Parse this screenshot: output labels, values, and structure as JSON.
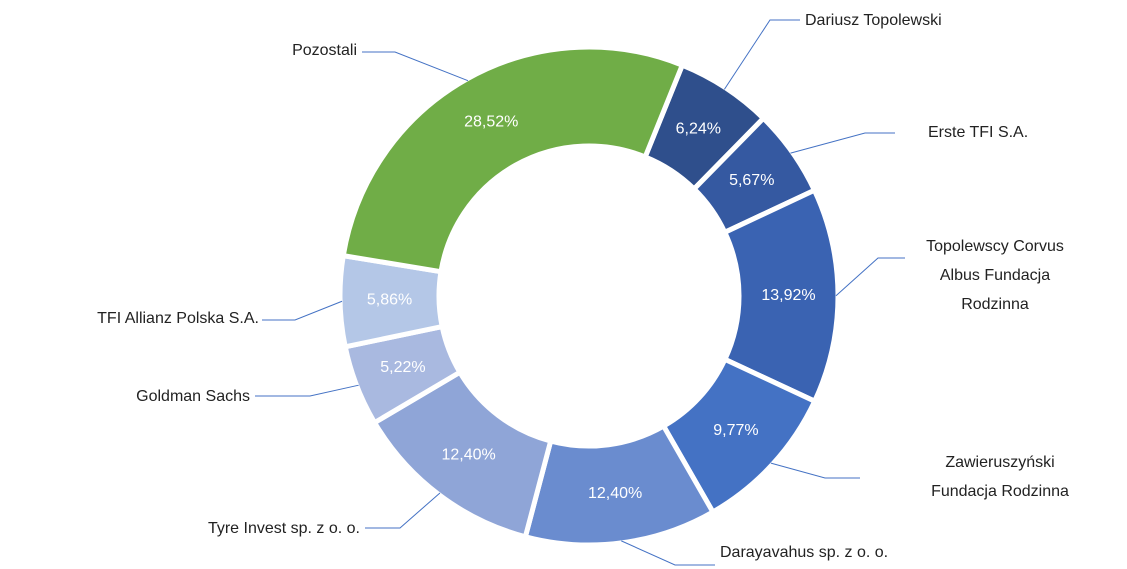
{
  "chart_data": {
    "type": "donut",
    "categories": [
      "Dariusz Topolewski",
      "Erste TFI S.A.",
      "Topolewscy Corvus Albus Fundacja Rodzinna",
      "Zawieruszyński Fundacja Rodzinna",
      "Darayavahus sp. z o. o.",
      "Tyre Invest sp. z o. o.",
      "Goldman Sachs",
      "TFI Allianz Polska S.A.",
      "Pozostali"
    ],
    "values": [
      6.24,
      5.67,
      13.92,
      9.77,
      12.4,
      12.4,
      5.22,
      5.86,
      28.52
    ],
    "value_labels": [
      "6,24%",
      "5,67%",
      "13,92%",
      "9,77%",
      "12,40%",
      "12,40%",
      "5,22%",
      "5,86%",
      "28,52%"
    ],
    "colors": [
      "#2f4f8c",
      "#3559a1",
      "#3a63b2",
      "#4472c4",
      "#6a8ccf",
      "#8fa5d7",
      "#a9b9e0",
      "#b4c7e7",
      "#70ad47"
    ]
  }
}
